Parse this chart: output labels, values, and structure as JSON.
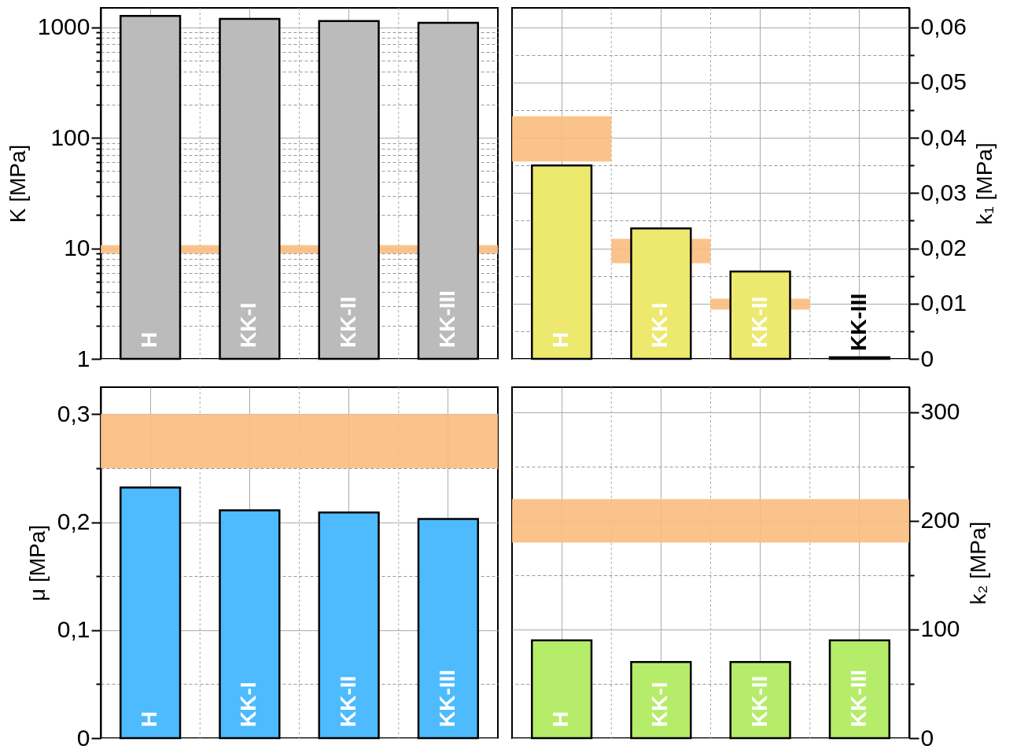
{
  "chart_data": [
    {
      "type": "bar",
      "categories": [
        "H",
        "KK-I",
        "KK-II",
        "KK-III"
      ],
      "series": [
        {
          "color": "#bbbbbb",
          "values": [
            1270,
            1190,
            1140,
            1100
          ]
        }
      ],
      "log": true,
      "ylabel": "K [MPa]",
      "ylim": [
        1,
        1500
      ],
      "yticks": [
        1,
        {
          "value": 2,
          "label": null
        },
        {
          "value": 3,
          "label": null
        },
        {
          "value": 4,
          "label": null
        },
        {
          "value": 5,
          "label": null
        },
        {
          "value": 6,
          "label": null
        },
        {
          "value": 7,
          "label": null
        },
        {
          "value": 8,
          "label": null
        },
        {
          "value": 9,
          "label": null
        },
        10,
        {
          "value": 20,
          "label": null
        },
        {
          "value": 30,
          "label": null
        },
        {
          "value": 40,
          "label": null
        },
        {
          "value": 50,
          "label": null
        },
        {
          "value": 60,
          "label": null
        },
        {
          "value": 70,
          "label": null
        },
        {
          "value": 80,
          "label": null
        },
        {
          "value": 90,
          "label": null
        },
        100,
        {
          "value": 200,
          "label": null
        },
        {
          "value": 300,
          "label": null
        },
        {
          "value": 400,
          "label": null
        },
        {
          "value": 500,
          "label": null
        },
        {
          "value": 600,
          "label": null
        },
        {
          "value": 700,
          "label": null
        },
        {
          "value": 800,
          "label": null
        },
        {
          "value": 900,
          "label": null
        },
        1000
      ],
      "bands": [
        {
          "axis": "y",
          "from": 9,
          "to": 10.7,
          "color": "#fbbc80"
        }
      ],
      "grid": true
    },
    {
      "type": "bar",
      "categories": [
        "H",
        "KK-I",
        "KK-II",
        "KK-III"
      ],
      "series": [
        {
          "type": "bar",
          "color": "#fbbc80",
          "axis": "y2",
          "base": [
            0.0357,
            0.0173,
            0.0089,
            null
          ],
          "values": [
            0.0082,
            0.0044,
            0.002,
            null
          ]
        },
        {
          "color": "#ede86e",
          "axis": "y2",
          "values": [
            0.035,
            0.0236,
            0.0158,
            0.0003
          ]
        }
      ],
      "y2label": "k₁ [MPa]",
      "y2lim": [
        0,
        0.0635
      ],
      "y2ticks": [
        0,
        {
          "value": 0.005,
          "label": null
        },
        {
          "value": 0.01,
          "label": "0,01"
        },
        {
          "value": 0.015,
          "label": null
        },
        {
          "value": 0.02,
          "label": "0,02"
        },
        {
          "value": 0.025,
          "label": null
        },
        {
          "value": 0.03,
          "label": "0,03"
        },
        {
          "value": 0.035,
          "label": null
        },
        {
          "value": 0.04,
          "label": "0,04"
        },
        {
          "value": 0.045,
          "label": null
        },
        {
          "value": 0.05,
          "label": "0,05"
        },
        {
          "value": 0.055,
          "label": null
        },
        {
          "value": 0.06,
          "label": "0,06"
        }
      ],
      "grid": true
    },
    {
      "type": "bar",
      "categories": [
        "H",
        "KK-I",
        "KK-II",
        "KK-III"
      ],
      "series": [
        {
          "color": "#4dbbfd",
          "values": [
            0.232,
            0.211,
            0.209,
            0.203
          ]
        }
      ],
      "ylabel": "μ [MPa]",
      "ylim": [
        0,
        0.325
      ],
      "yticks": [
        0,
        {
          "value": 0.05,
          "label": null
        },
        {
          "value": 0.1,
          "label": "0,1"
        },
        {
          "value": 0.15,
          "label": null
        },
        {
          "value": 0.2,
          "label": "0,2"
        },
        {
          "value": 0.25,
          "label": null
        },
        {
          "value": 0.3,
          "label": "0,3"
        }
      ],
      "bands": [
        {
          "axis": "y",
          "from": 0.25,
          "to": 0.3,
          "color": "#fbbc80"
        }
      ],
      "grid": true
    },
    {
      "type": "bar",
      "categories": [
        "H",
        "KK-I",
        "KK-II",
        "KK-III"
      ],
      "series": [
        {
          "color": "#b5ec6a",
          "axis": "y2",
          "values": [
            90,
            70,
            70,
            90
          ]
        }
      ],
      "y2label": "k₂ [MPa]",
      "y2lim": [
        0,
        323
      ],
      "y2ticks": [
        0,
        {
          "value": 50,
          "label": null
        },
        100,
        {
          "value": 150,
          "label": null
        },
        200,
        {
          "value": 250,
          "label": null
        },
        300
      ],
      "bands": [
        {
          "axis": "y2",
          "from": 180,
          "to": 220,
          "color": "#fbbc80"
        }
      ],
      "grid": true
    }
  ]
}
